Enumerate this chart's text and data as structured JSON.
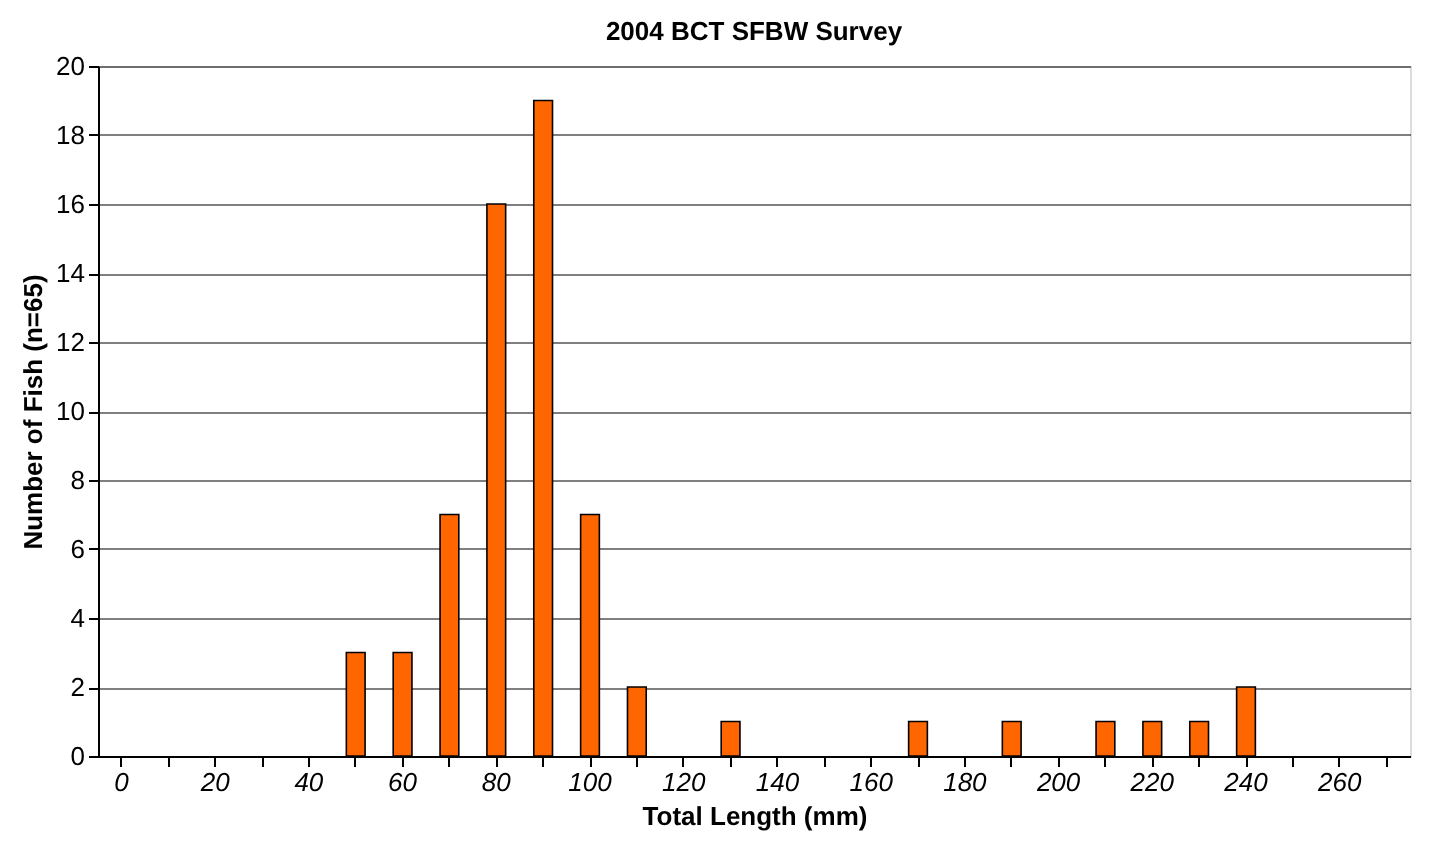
{
  "chart_data": {
    "type": "bar",
    "title": "2004 BCT SFBW Survey",
    "xlabel": "Total Length (mm)",
    "ylabel": "Number of Fish (n=65)",
    "categories": [
      "0",
      null,
      "20",
      null,
      "40",
      null,
      "60",
      null,
      "80",
      null,
      "100",
      null,
      "120",
      null,
      "140",
      null,
      "160",
      null,
      "180",
      null,
      "200",
      null,
      "220",
      null,
      "240",
      null,
      "260",
      null
    ],
    "values": [
      0,
      0,
      0,
      0,
      0,
      3,
      3,
      7,
      16,
      19,
      7,
      2,
      0,
      1,
      0,
      0,
      0,
      1,
      0,
      1,
      0,
      1,
      1,
      1,
      2,
      0,
      0,
      0
    ],
    "color": "#ff6600",
    "ylim": [
      0,
      20
    ],
    "yticks": [
      0,
      2,
      4,
      6,
      8,
      10,
      12,
      14,
      16,
      18,
      20
    ],
    "grid": "y"
  }
}
